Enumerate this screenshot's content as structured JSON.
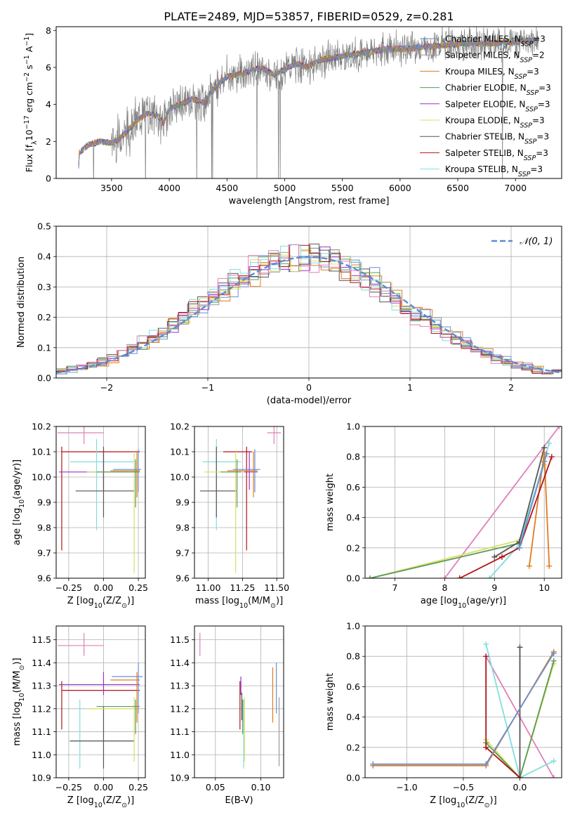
{
  "figure_title": "PLATE=2489, MJD=53857, FIBERID=0529, z=0.281",
  "colors": {
    "Chabrier MILES": "#6a8fd8",
    "Salpeter MILES": "#9a9a9a",
    "Kroupa MILES": "#e07b1f",
    "Chabrier ELODIE": "#5a9a5a",
    "Salpeter ELODIE": "#9b30c8",
    "Kroupa ELODIE": "#d8e060",
    "Chabrier STELIB": "#555555",
    "Salpeter STELIB": "#b01515",
    "Kroupa STELIB": "#80dede",
    "pink": "#e080b8",
    "normal": "#5b8ad6",
    "data": "#808080"
  },
  "chart_data": [
    {
      "type": "line",
      "id": "spectrum",
      "xlabel": "wavelength [Angstrom, rest frame]",
      "ylabel": "Flux [f",
      "ylabel_sub": "λ",
      "ylabel_rest": "10",
      "ylabel_exp": "−17",
      "ylabel_units": " erg cm",
      "ylabel_units_exp": "−2",
      "ylabel_s": " s",
      "ylabel_s_exp": "−1",
      "ylabel_A": " A",
      "ylabel_A_exp": "−1",
      "ylabel_end": "]",
      "xlim": [
        3020,
        7400
      ],
      "ylim": [
        0,
        8.2
      ],
      "xticks": [
        3500,
        4000,
        4500,
        5000,
        5500,
        6000,
        6500,
        7000
      ],
      "yticks": [
        0,
        2,
        4,
        6,
        8
      ],
      "continuum": [
        [
          3210,
          0.0
        ],
        [
          3220,
          1.4
        ],
        [
          3300,
          1.8
        ],
        [
          3400,
          2.0
        ],
        [
          3500,
          1.9
        ],
        [
          3560,
          2.1
        ],
        [
          3700,
          3.0
        ],
        [
          3800,
          3.5
        ],
        [
          3900,
          3.4
        ],
        [
          3950,
          3.0
        ],
        [
          4000,
          3.8
        ],
        [
          4100,
          4.0
        ],
        [
          4200,
          4.3
        ],
        [
          4300,
          4.1
        ],
        [
          4400,
          5.0
        ],
        [
          4500,
          5.5
        ],
        [
          4600,
          5.6
        ],
        [
          4700,
          5.8
        ],
        [
          4800,
          6.0
        ],
        [
          4900,
          5.6
        ],
        [
          5000,
          5.9
        ],
        [
          5100,
          6.2
        ],
        [
          5200,
          6.0
        ],
        [
          5300,
          6.4
        ],
        [
          5400,
          6.5
        ],
        [
          5500,
          6.6
        ],
        [
          5600,
          6.7
        ],
        [
          5700,
          6.8
        ],
        [
          5800,
          6.9
        ],
        [
          5900,
          7.0
        ],
        [
          6000,
          7.0
        ],
        [
          6200,
          7.1
        ],
        [
          6400,
          7.2
        ],
        [
          6600,
          7.3
        ],
        [
          6800,
          7.3
        ],
        [
          7000,
          7.4
        ],
        [
          7200,
          7.5
        ]
      ],
      "legend": [
        {
          "label": "Chabrier MILES",
          "sub": "SSP",
          "n": "=3"
        },
        {
          "label": "Salpeter MILES",
          "sub": "SSP",
          "n": "=2"
        },
        {
          "label": "Kroupa MILES",
          "sub": "SSP",
          "n": "=3"
        },
        {
          "label": "Chabrier ELODIE",
          "sub": "SSP",
          "n": "=3"
        },
        {
          "label": "Salpeter ELODIE",
          "sub": "SSP",
          "n": "=3"
        },
        {
          "label": "Kroupa ELODIE",
          "sub": "SSP",
          "n": "=3"
        },
        {
          "label": "Chabrier STELIB",
          "sub": "SSP",
          "n": "=3"
        },
        {
          "label": "Salpeter STELIB",
          "sub": "SSP",
          "n": "=3"
        },
        {
          "label": "Kroupa STELIB",
          "sub": "SSP",
          "n": "=3"
        }
      ]
    },
    {
      "type": "bar",
      "id": "residuals",
      "xlabel": "(data-model)/error",
      "ylabel": "Normed distribution",
      "xlim": [
        -2.5,
        2.5
      ],
      "ylim": [
        0,
        0.5
      ],
      "xticks": [
        -2,
        -1,
        0,
        1,
        2
      ],
      "yticks": [
        0.0,
        0.1,
        0.2,
        0.3,
        0.4,
        0.5
      ],
      "ytick_labels": [
        "0.0",
        "0.1",
        "0.2",
        "0.3",
        "0.4",
        "0.5"
      ],
      "legend": [
        {
          "label": "𝒩(0, 1)"
        }
      ]
    },
    {
      "type": "scatter",
      "id": "age_vs_Z",
      "xlabel": "Z [log",
      "xlabel_sub": "10",
      "xlabel_rest": "(Z/Z",
      "xlabel_sun": "⊙",
      "xlabel_end": ")]",
      "ylabel": "age  [log",
      "ylabel_sub": "10",
      "ylabel_rest": "(age/yr)]",
      "xlim": [
        -0.34,
        0.3
      ],
      "ylim": [
        9.6,
        10.2
      ],
      "xticks": [
        -0.25,
        0.0,
        0.25
      ],
      "xtick_labels": [
        "−0.25",
        "0.00",
        "0.25"
      ],
      "yticks": [
        9.6,
        9.7,
        9.8,
        9.9,
        10.0,
        10.1,
        10.2
      ],
      "ytick_labels": [
        "9.6",
        "9.7",
        "9.8",
        "9.9",
        "10.0",
        "10.1",
        "10.2"
      ],
      "points": [
        {
          "c": "pink",
          "x": -0.14,
          "xl": -0.33,
          "xh": 0.0,
          "y": 10.175,
          "yl": 10.13,
          "yh": 10.2
        },
        {
          "c": "Salpeter STELIB",
          "x": -0.3,
          "xl": -0.3,
          "xh": 0.26,
          "y": 10.1,
          "yl": 9.71,
          "yh": 10.12
        },
        {
          "c": "Salpeter ELODIE",
          "x": 0.0,
          "xl": -0.32,
          "xh": 0.26,
          "y": 10.02,
          "yl": 9.95,
          "yh": 10.1
        },
        {
          "c": "Kroupa STELIB",
          "x": -0.05,
          "xl": -0.24,
          "xh": 0.22,
          "y": 10.06,
          "yl": 9.79,
          "yh": 10.15
        },
        {
          "c": "Chabrier STELIB",
          "x": 0.0,
          "xl": -0.2,
          "xh": 0.22,
          "y": 9.945,
          "yl": 9.84,
          "yh": 10.12
        },
        {
          "c": "Kroupa ELODIE",
          "x": 0.22,
          "xl": -0.12,
          "xh": 0.26,
          "y": 10.02,
          "yl": 9.62,
          "yh": 10.1
        },
        {
          "c": "Chabrier ELODIE",
          "x": 0.23,
          "xl": -0.05,
          "xh": 0.26,
          "y": 10.02,
          "yl": 9.88,
          "yh": 10.07
        },
        {
          "c": "Kroupa MILES",
          "x": 0.24,
          "xl": 0.05,
          "xh": 0.26,
          "y": 10.025,
          "yl": 9.92,
          "yh": 10.1
        },
        {
          "c": "Chabrier MILES",
          "x": 0.25,
          "xl": 0.07,
          "xh": 0.27,
          "y": 10.03,
          "yl": 9.94,
          "yh": 10.11
        }
      ]
    },
    {
      "type": "scatter",
      "id": "age_vs_mass",
      "xlabel": "mass [log",
      "xlabel_sub": "10",
      "xlabel_rest": "(M/M",
      "xlabel_sun": "⊙",
      "xlabel_end": ")]",
      "xlim": [
        10.9,
        11.55
      ],
      "ylim": [
        9.6,
        10.2
      ],
      "xticks": [
        11.0,
        11.25,
        11.5
      ],
      "xtick_labels": [
        "11.00",
        "11.25",
        "11.50"
      ],
      "yticks": [
        9.6,
        9.7,
        9.8,
        9.9,
        10.0,
        10.1,
        10.2
      ],
      "ytick_labels": [
        "9.6",
        "9.7",
        "9.8",
        "9.9",
        "10.0",
        "10.1",
        "10.2"
      ],
      "points": [
        {
          "c": "pink",
          "x": 11.48,
          "xl": 11.43,
          "xh": 11.53,
          "y": 10.175,
          "yl": 10.13,
          "yh": 10.2
        },
        {
          "c": "Salpeter STELIB",
          "x": 11.28,
          "xl": 11.11,
          "xh": 11.32,
          "y": 10.1,
          "yl": 9.71,
          "yh": 10.12
        },
        {
          "c": "Salpeter ELODIE",
          "x": 11.3,
          "xl": 11.26,
          "xh": 11.36,
          "y": 10.02,
          "yl": 9.95,
          "yh": 10.1
        },
        {
          "c": "Kroupa STELIB",
          "x": 11.06,
          "xl": 10.96,
          "xh": 11.24,
          "y": 10.06,
          "yl": 9.79,
          "yh": 10.15
        },
        {
          "c": "Chabrier STELIB",
          "x": 11.06,
          "xl": 10.94,
          "xh": 11.21,
          "y": 9.945,
          "yl": 9.84,
          "yh": 10.12
        },
        {
          "c": "Kroupa ELODIE",
          "x": 11.2,
          "xl": 10.97,
          "xh": 11.25,
          "y": 10.02,
          "yl": 9.62,
          "yh": 10.1
        },
        {
          "c": "Chabrier ELODIE",
          "x": 11.21,
          "xl": 11.09,
          "xh": 11.24,
          "y": 10.02,
          "yl": 9.88,
          "yh": 10.07
        },
        {
          "c": "Kroupa MILES",
          "x": 11.33,
          "xl": 11.14,
          "xh": 11.36,
          "y": 10.025,
          "yl": 9.92,
          "yh": 10.1
        },
        {
          "c": "Chabrier MILES",
          "x": 11.34,
          "xl": 11.18,
          "xh": 11.38,
          "y": 10.03,
          "yl": 9.94,
          "yh": 10.11
        }
      ]
    },
    {
      "type": "line",
      "id": "mass_weight_vs_age",
      "xlabel": "age  [log",
      "xlabel_sub": "10",
      "xlabel_rest": "(age/yr)]",
      "ylabel": "mass weight",
      "xlim": [
        6.4,
        10.35
      ],
      "ylim": [
        0,
        1.0
      ],
      "xticks": [
        7,
        8,
        9,
        10
      ],
      "yticks": [
        0.0,
        0.2,
        0.4,
        0.6,
        0.8,
        1.0
      ],
      "ytick_labels": [
        "0.0",
        "0.2",
        "0.4",
        "0.6",
        "0.8",
        "1.0"
      ],
      "series": [
        {
          "c": "pink",
          "points": [
            [
              8.0,
              0.0
            ],
            [
              10.3,
              1.0
            ]
          ]
        },
        {
          "c": "Kroupa ELODIE",
          "points": [
            [
              6.5,
              0.0
            ],
            [
              9.5,
              0.25
            ],
            [
              10.0,
              0.75
            ]
          ]
        },
        {
          "c": "Chabrier ELODIE",
          "points": [
            [
              6.5,
              0.0
            ],
            [
              9.5,
              0.23
            ],
            [
              10.0,
              0.77
            ]
          ]
        },
        {
          "c": "Kroupa STELIB",
          "points": [
            [
              8.9,
              0.0
            ],
            [
              9.5,
              0.22
            ],
            [
              10.1,
              0.89
            ]
          ]
        },
        {
          "c": "Chabrier STELIB",
          "points": [
            [
              9.0,
              0.14
            ],
            [
              9.5,
              0.24
            ],
            [
              10.0,
              0.86
            ]
          ]
        },
        {
          "c": "Kroupa MILES",
          "points": [
            [
              9.7,
              0.08
            ],
            [
              10.0,
              0.83
            ],
            [
              10.1,
              0.08
            ]
          ]
        },
        {
          "c": "Salpeter STELIB",
          "points": [
            [
              8.3,
              0.0
            ],
            [
              9.15,
              0.14
            ],
            [
              9.5,
              0.2
            ],
            [
              10.15,
              0.8
            ]
          ]
        },
        {
          "c": "Chabrier MILES",
          "points": [
            [
              9.5,
              0.2
            ],
            [
              10.05,
              0.82
            ]
          ]
        }
      ]
    },
    {
      "type": "scatter",
      "id": "mass_vs_Z",
      "xlabel": "Z [log",
      "xlabel_sub": "10",
      "xlabel_rest": "(Z/Z",
      "xlabel_sun": "⊙",
      "xlabel_end": ")]",
      "ylabel": "mass [log",
      "ylabel_sub": "10",
      "ylabel_rest": "(M/M",
      "ylabel_sun": "⊙",
      "ylabel_end": ")]",
      "xlim": [
        -0.34,
        0.3
      ],
      "ylim": [
        10.9,
        11.56
      ],
      "xticks": [
        -0.25,
        0.0,
        0.25
      ],
      "xtick_labels": [
        "−0.25",
        "0.00",
        "0.25"
      ],
      "yticks": [
        10.9,
        11.0,
        11.1,
        11.2,
        11.3,
        11.4,
        11.5
      ],
      "ytick_labels": [
        "10.9",
        "11.0",
        "11.1",
        "11.2",
        "11.3",
        "11.4",
        "11.5"
      ],
      "points": [
        {
          "c": "pink",
          "x": -0.14,
          "xl": -0.33,
          "xh": 0.0,
          "y": 11.475,
          "yl": 11.43,
          "yh": 11.53
        },
        {
          "c": "Salpeter STELIB",
          "x": -0.3,
          "xl": -0.3,
          "xh": 0.26,
          "y": 11.28,
          "yl": 11.11,
          "yh": 11.32
        },
        {
          "c": "Salpeter ELODIE",
          "x": 0.0,
          "xl": -0.32,
          "xh": 0.26,
          "y": 11.305,
          "yl": 11.26,
          "yh": 11.36
        },
        {
          "c": "Kroupa STELIB",
          "x": -0.17,
          "xl": -0.25,
          "xh": 0.2,
          "y": 11.06,
          "yl": 10.94,
          "yh": 11.24
        },
        {
          "c": "Chabrier STELIB",
          "x": 0.0,
          "xl": -0.24,
          "xh": 0.22,
          "y": 11.06,
          "yl": 10.94,
          "yh": 11.21
        },
        {
          "c": "Kroupa ELODIE",
          "x": 0.22,
          "xl": -0.12,
          "xh": 0.26,
          "y": 11.2,
          "yl": 10.97,
          "yh": 11.25
        },
        {
          "c": "Chabrier ELODIE",
          "x": 0.23,
          "xl": -0.05,
          "xh": 0.26,
          "y": 11.21,
          "yl": 11.09,
          "yh": 11.24
        },
        {
          "c": "Kroupa MILES",
          "x": 0.24,
          "xl": 0.05,
          "xh": 0.26,
          "y": 11.325,
          "yl": 11.14,
          "yh": 11.36
        },
        {
          "c": "Chabrier MILES",
          "x": 0.25,
          "xl": 0.06,
          "xh": 0.28,
          "y": 11.34,
          "yl": 11.18,
          "yh": 11.4
        }
      ]
    },
    {
      "type": "scatter",
      "id": "mass_vs_ebv",
      "xlabel": "E(B-V)",
      "xlim": [
        0.027,
        0.125
      ],
      "ylim": [
        10.9,
        11.56
      ],
      "xticks": [
        0.05,
        0.1
      ],
      "xtick_labels": [
        "0.05",
        "0.10"
      ],
      "yticks": [
        10.9,
        11.0,
        11.1,
        11.2,
        11.3,
        11.4,
        11.5
      ],
      "ytick_labels": [
        "10.9",
        "11.0",
        "11.1",
        "11.2",
        "11.3",
        "11.4",
        "11.5"
      ],
      "points": [
        {
          "c": "pink",
          "x": 0.033,
          "yl": 11.43,
          "yh": 11.53
        },
        {
          "c": "Salpeter STELIB",
          "x": 0.077,
          "yl": 11.11,
          "yh": 11.32
        },
        {
          "c": "Salpeter ELODIE",
          "x": 0.078,
          "yl": 11.26,
          "yh": 11.34
        },
        {
          "c": "Chabrier STELIB",
          "x": 0.079,
          "yl": 11.15,
          "yh": 11.27
        },
        {
          "c": "Chabrier ELODIE",
          "x": 0.08,
          "yl": 11.09,
          "yh": 11.24
        },
        {
          "c": "Kroupa STELIB",
          "x": 0.081,
          "yl": 10.94,
          "yh": 11.24
        },
        {
          "c": "Kroupa ELODIE",
          "x": 0.082,
          "yl": 10.97,
          "yh": 11.25
        },
        {
          "c": "Kroupa MILES",
          "x": 0.113,
          "yl": 11.14,
          "yh": 11.38
        },
        {
          "c": "Chabrier MILES",
          "x": 0.117,
          "yl": 11.18,
          "yh": 11.4
        },
        {
          "c": "Salpeter MILES",
          "x": 0.12,
          "yl": 10.95,
          "yh": 11.25
        }
      ]
    },
    {
      "type": "line",
      "id": "mass_weight_vs_Z",
      "xlabel": "Z [log",
      "xlabel_sub": "10",
      "xlabel_rest": "(Z/Z",
      "xlabel_sun": "⊙",
      "xlabel_end": ")]",
      "ylabel": "mass weight",
      "xlim": [
        -1.37,
        0.37
      ],
      "ylim": [
        0,
        1.0
      ],
      "xticks": [
        -1.0,
        -0.5,
        0.0
      ],
      "xtick_labels": [
        "−1.0",
        "−0.5",
        "0.0"
      ],
      "yticks": [
        0.0,
        0.2,
        0.4,
        0.6,
        0.8,
        1.0
      ],
      "ytick_labels": [
        "0.0",
        "0.2",
        "0.4",
        "0.6",
        "0.8",
        "1.0"
      ],
      "series": [
        {
          "c": "pink",
          "points": [
            [
              -0.3,
              0.8
            ],
            [
              0.3,
              0.0
            ]
          ]
        },
        {
          "c": "Kroupa STELIB",
          "points": [
            [
              -0.3,
              0.88
            ],
            [
              0.0,
              0.0
            ],
            [
              0.3,
              0.11
            ]
          ]
        },
        {
          "c": "Chabrier STELIB",
          "points": [
            [
              0.0,
              0.86
            ],
            [
              0.0,
              0.0
            ]
          ]
        },
        {
          "c": "Kroupa ELODIE",
          "points": [
            [
              -0.3,
              0.25
            ],
            [
              0.0,
              0.0
            ],
            [
              0.3,
              0.75
            ]
          ]
        },
        {
          "c": "Chabrier ELODIE",
          "points": [
            [
              -0.3,
              0.23
            ],
            [
              0.0,
              0.0
            ],
            [
              0.3,
              0.77
            ]
          ]
        },
        {
          "c": "Salpeter STELIB",
          "points": [
            [
              -0.3,
              0.8
            ],
            [
              -0.3,
              0.2
            ],
            [
              0.0,
              0.0
            ]
          ]
        },
        {
          "c": "Kroupa MILES",
          "points": [
            [
              -1.3,
              0.08
            ],
            [
              -0.3,
              0.08
            ],
            [
              0.3,
              0.83
            ]
          ]
        },
        {
          "c": "Chabrier MILES",
          "points": [
            [
              -1.3,
              0.09
            ],
            [
              -0.3,
              0.09
            ],
            [
              0.3,
              0.82
            ]
          ]
        }
      ]
    }
  ]
}
